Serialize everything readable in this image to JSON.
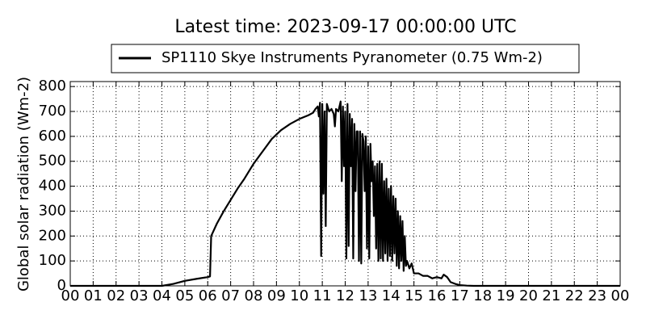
{
  "chart_data": {
    "type": "line",
    "title": "Latest time: 2023-09-17 00:00:00 UTC",
    "y_label": "Global solar radiation (Wm-2)",
    "legend": "top",
    "grid": true,
    "xlim": [
      0,
      24
    ],
    "ylim": [
      0,
      820
    ],
    "yticks": [
      0,
      100,
      200,
      300,
      400,
      500,
      600,
      700,
      800
    ],
    "xticks": [
      {
        "value": 0,
        "label": "00"
      },
      {
        "value": 1,
        "label": "01"
      },
      {
        "value": 2,
        "label": "02"
      },
      {
        "value": 3,
        "label": "03"
      },
      {
        "value": 4,
        "label": "04"
      },
      {
        "value": 5,
        "label": "05"
      },
      {
        "value": 6,
        "label": "06"
      },
      {
        "value": 7,
        "label": "07"
      },
      {
        "value": 8,
        "label": "08"
      },
      {
        "value": 9,
        "label": "09"
      },
      {
        "value": 10,
        "label": "10"
      },
      {
        "value": 11,
        "label": "11"
      },
      {
        "value": 12,
        "label": "12"
      },
      {
        "value": 13,
        "label": "13"
      },
      {
        "value": 14,
        "label": "14"
      },
      {
        "value": 15,
        "label": "15"
      },
      {
        "value": 16,
        "label": "16"
      },
      {
        "value": 17,
        "label": "17"
      },
      {
        "value": 18,
        "label": "18"
      },
      {
        "value": 19,
        "label": "19"
      },
      {
        "value": 20,
        "label": "20"
      },
      {
        "value": 21,
        "label": "21"
      },
      {
        "value": 22,
        "label": "22"
      },
      {
        "value": 23,
        "label": "23"
      },
      {
        "value": 24,
        "label": "00"
      }
    ],
    "x": [
      0,
      4.0,
      4.5,
      5.0,
      5.5,
      6.0,
      6.1,
      6.15,
      6.4,
      6.7,
      7.0,
      7.3,
      7.6,
      8.0,
      8.4,
      8.8,
      9.2,
      9.6,
      10.0,
      10.4,
      10.6,
      10.7,
      10.8,
      10.85,
      10.9,
      10.95,
      11.0,
      11.05,
      11.1,
      11.15,
      11.2,
      11.3,
      11.4,
      11.5,
      11.55,
      11.6,
      11.7,
      11.8,
      11.85,
      11.9,
      11.95,
      12.0,
      12.05,
      12.1,
      12.15,
      12.2,
      12.25,
      12.3,
      12.35,
      12.4,
      12.45,
      12.5,
      12.55,
      12.6,
      12.65,
      12.7,
      12.75,
      12.8,
      12.85,
      12.9,
      12.95,
      13.0,
      13.05,
      13.1,
      13.15,
      13.2,
      13.25,
      13.3,
      13.35,
      13.4,
      13.45,
      13.5,
      13.55,
      13.6,
      13.65,
      13.7,
      13.75,
      13.8,
      13.85,
      13.9,
      13.95,
      14.0,
      14.05,
      14.1,
      14.15,
      14.2,
      14.25,
      14.3,
      14.35,
      14.4,
      14.45,
      14.5,
      14.55,
      14.6,
      14.65,
      14.7,
      14.8,
      14.9,
      15.0,
      15.2,
      15.4,
      15.6,
      15.8,
      16.0,
      16.2,
      16.3,
      16.45,
      16.6,
      16.8,
      17.0,
      17.3,
      17.6,
      24
    ],
    "series": [
      {
        "name": "SP1110 Skye Instruments Pyranometer (0.75 Wm-2)",
        "color": "#000000",
        "values": [
          0,
          0,
          8,
          20,
          28,
          35,
          38,
          200,
          250,
          300,
          345,
          390,
          430,
          490,
          540,
          590,
          625,
          650,
          670,
          685,
          695,
          710,
          720,
          680,
          735,
          120,
          730,
          370,
          700,
          240,
          730,
          700,
          710,
          690,
          640,
          710,
          700,
          740,
          420,
          720,
          480,
          700,
          110,
          730,
          160,
          690,
          480,
          670,
          110,
          650,
          380,
          620,
          620,
          100,
          620,
          90,
          610,
          580,
          380,
          600,
          150,
          560,
          110,
          570,
          420,
          500,
          280,
          480,
          150,
          490,
          100,
          500,
          110,
          490,
          100,
          420,
          130,
          430,
          100,
          390,
          120,
          400,
          100,
          360,
          130,
          350,
          80,
          300,
          70,
          280,
          100,
          260,
          60,
          200,
          80,
          100,
          70,
          90,
          50,
          50,
          40,
          40,
          30,
          35,
          30,
          45,
          35,
          15,
          8,
          3,
          1,
          0,
          0
        ]
      }
    ]
  }
}
